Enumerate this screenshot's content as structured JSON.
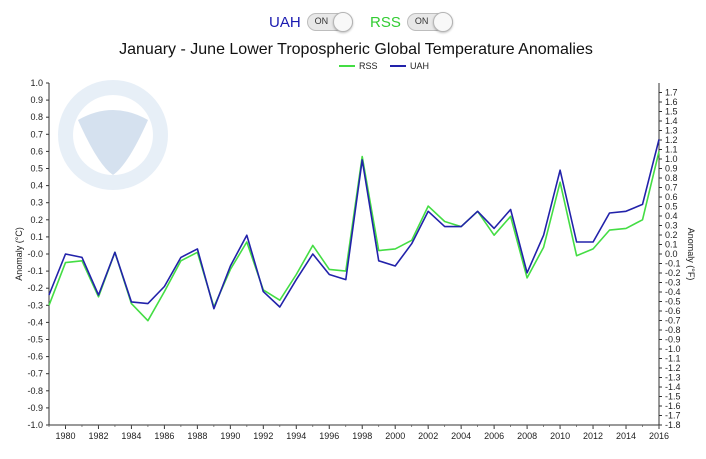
{
  "toggles": [
    {
      "label": "UAH",
      "state": "ON",
      "color": "#1a1ab0"
    },
    {
      "label": "RSS",
      "state": "ON",
      "color": "#33cc33"
    }
  ],
  "chart_data": {
    "type": "line",
    "title": "January - June Lower Tropospheric Global Temperature Anomalies",
    "ylabel": "Anomaly (°C)",
    "ylabel_right": "Anomaly (°F)",
    "ylim": [
      -1.0,
      1.0
    ],
    "ylim_right": [
      -1.8,
      1.8
    ],
    "xlim": [
      1979,
      2016
    ],
    "x": [
      1979,
      1980,
      1981,
      1982,
      1983,
      1984,
      1985,
      1986,
      1987,
      1988,
      1989,
      1990,
      1991,
      1992,
      1993,
      1994,
      1995,
      1996,
      1997,
      1998,
      1999,
      2000,
      2001,
      2002,
      2003,
      2004,
      2005,
      2006,
      2007,
      2008,
      2009,
      2010,
      2011,
      2012,
      2013,
      2014,
      2015,
      2016
    ],
    "x_ticks": [
      "1980",
      "1982",
      "1984",
      "1986",
      "1988",
      "1990",
      "1992",
      "1994",
      "1996",
      "1998",
      "2000",
      "2002",
      "2004",
      "2006",
      "2008",
      "2010",
      "2012",
      "2014",
      "2016"
    ],
    "y_ticks": [
      "-1.0",
      "-0.9",
      "-0.8",
      "-0.7",
      "-0.6",
      "-0.5",
      "-0.4",
      "-0.3",
      "-0.2",
      "-0.1",
      "-0.0",
      "0.1",
      "0.2",
      "0.3",
      "0.4",
      "0.5",
      "0.6",
      "0.7",
      "0.8",
      "0.9",
      "1.0"
    ],
    "y_ticks_right": [
      "-1.8",
      "-1.7",
      "-1.6",
      "-1.5",
      "-1.4",
      "-1.3",
      "-1.2",
      "-1.1",
      "-1.0",
      "-0.9",
      "-0.8",
      "-0.7",
      "-0.6",
      "-0.5",
      "-0.4",
      "-0.3",
      "-0.2",
      "-0.1",
      "0.0",
      "0.1",
      "0.2",
      "0.3",
      "0.4",
      "0.5",
      "0.6",
      "0.7",
      "0.8",
      "0.9",
      "1.0",
      "1.1",
      "1.2",
      "1.3",
      "1.4",
      "1.5",
      "1.6",
      "1.7"
    ],
    "legend_position": "top-right",
    "series": [
      {
        "name": "RSS",
        "color": "#44dd44",
        "values": [
          -0.3,
          -0.05,
          -0.04,
          -0.25,
          0.01,
          -0.29,
          -0.39,
          -0.22,
          -0.04,
          0.01,
          -0.31,
          -0.09,
          0.07,
          -0.21,
          -0.27,
          -0.12,
          0.05,
          -0.09,
          -0.1,
          0.57,
          0.02,
          0.03,
          0.08,
          0.28,
          0.19,
          0.16,
          0.25,
          0.11,
          0.22,
          -0.14,
          0.04,
          0.42,
          -0.01,
          0.03,
          0.14,
          0.15,
          0.2,
          0.6
        ]
      },
      {
        "name": "UAH",
        "color": "#2222aa",
        "values": [
          -0.24,
          0,
          -0.02,
          -0.24,
          0.01,
          -0.28,
          -0.29,
          -0.19,
          -0.02,
          0.03,
          -0.32,
          -0.07,
          0.11,
          -0.22,
          -0.31,
          -0.15,
          0,
          -0.12,
          -0.15,
          0.55,
          -0.04,
          -0.07,
          0.06,
          0.25,
          0.16,
          0.16,
          0.25,
          0.15,
          0.26,
          -0.11,
          0.11,
          0.49,
          0.07,
          0.07,
          0.24,
          0.25,
          0.29,
          0.67
        ]
      }
    ]
  }
}
